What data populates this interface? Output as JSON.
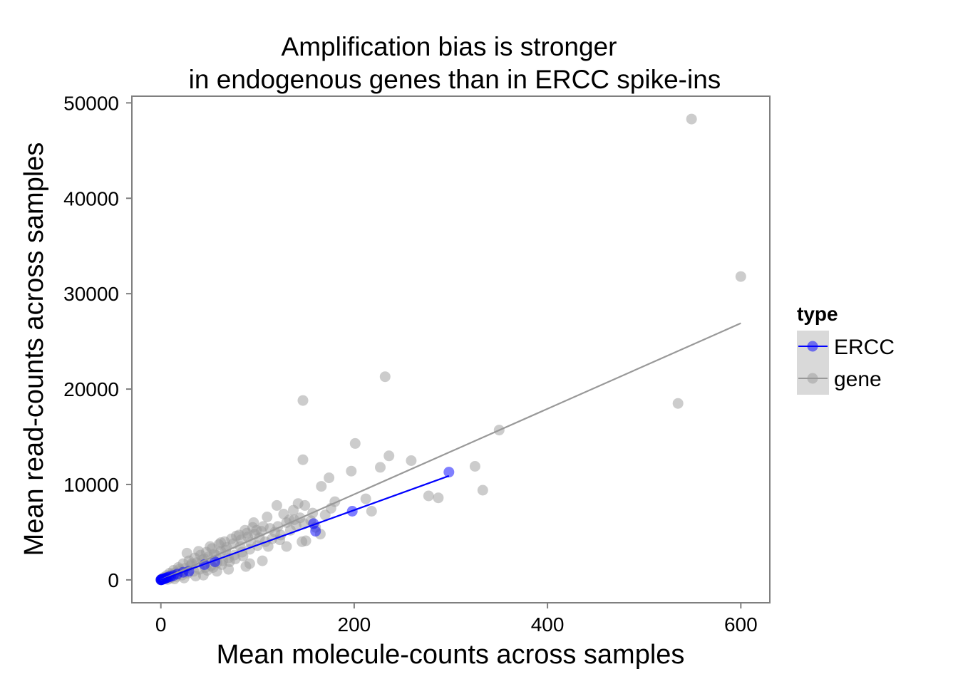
{
  "chart_data": {
    "type": "scatter",
    "title_lines": [
      "Amplification bias is stronger",
      "in endogenous genes than in ERCC spike-ins"
    ],
    "xlabel": "Mean molecule-counts across samples",
    "ylabel": "Mean read-counts across samples",
    "xlim": [
      -30,
      630
    ],
    "ylim": [
      -2400,
      50700
    ],
    "x_ticks": [
      0,
      200,
      400,
      600
    ],
    "y_ticks": [
      0,
      10000,
      20000,
      30000,
      40000,
      50000
    ],
    "x_tick_labels": [
      "0",
      "200",
      "400",
      "600"
    ],
    "y_tick_labels": [
      "0",
      "10000",
      "20000",
      "30000",
      "40000",
      "50000"
    ],
    "grid": false,
    "legend": {
      "title": "type",
      "placement": "right",
      "entries": [
        {
          "label": "ERCC",
          "color": "#0000ff"
        },
        {
          "label": "gene",
          "color": "#999999"
        }
      ]
    },
    "series": [
      {
        "name": "gene",
        "color": "#999999",
        "point_opacity": 0.5,
        "fit_line": {
          "x": [
            0,
            600
          ],
          "y": [
            0,
            26900
          ]
        },
        "points": [
          [
            549,
            48300
          ],
          [
            600,
            31800
          ],
          [
            535,
            18500
          ],
          [
            350,
            15700
          ],
          [
            232,
            21300
          ],
          [
            147,
            18800
          ],
          [
            147,
            12600
          ],
          [
            201,
            14300
          ],
          [
            236,
            13000
          ],
          [
            259,
            12500
          ],
          [
            197,
            11400
          ],
          [
            227,
            11800
          ],
          [
            325,
            11900
          ],
          [
            333,
            9400
          ],
          [
            277,
            8800
          ],
          [
            287,
            8600
          ],
          [
            174,
            10700
          ],
          [
            166,
            9800
          ],
          [
            212,
            8500
          ],
          [
            218,
            7200
          ],
          [
            180,
            8200
          ],
          [
            176,
            7500
          ],
          [
            142,
            8000
          ],
          [
            137,
            7300
          ],
          [
            120,
            7800
          ],
          [
            127,
            6900
          ],
          [
            149,
            7800
          ],
          [
            157,
            7000
          ],
          [
            144,
            6500
          ],
          [
            133,
            6300
          ],
          [
            110,
            6600
          ],
          [
            96,
            6000
          ],
          [
            106,
            5600
          ],
          [
            99,
            5200
          ],
          [
            89,
            4900
          ],
          [
            81,
            4700
          ],
          [
            73,
            4300
          ],
          [
            66,
            4000
          ],
          [
            60,
            3700
          ],
          [
            53,
            3300
          ],
          [
            47,
            2900
          ],
          [
            41,
            2600
          ],
          [
            35,
            2300
          ],
          [
            29,
            2000
          ],
          [
            23,
            1700
          ],
          [
            18,
            1300
          ],
          [
            13,
            1000
          ],
          [
            9,
            700
          ],
          [
            6,
            450
          ],
          [
            3,
            250
          ],
          [
            1,
            100
          ],
          [
            0,
            20
          ],
          [
            2,
            60
          ],
          [
            4,
            180
          ],
          [
            8,
            320
          ],
          [
            11,
            500
          ],
          [
            15,
            750
          ],
          [
            20,
            900
          ],
          [
            25,
            1200
          ],
          [
            31,
            1500
          ],
          [
            37,
            1800
          ],
          [
            43,
            2100
          ],
          [
            49,
            2400
          ],
          [
            55,
            2700
          ],
          [
            62,
            3000
          ],
          [
            68,
            3400
          ],
          [
            75,
            3800
          ],
          [
            83,
            4200
          ],
          [
            90,
            4500
          ],
          [
            97,
            4800
          ],
          [
            104,
            5100
          ],
          [
            113,
            5400
          ],
          [
            121,
            5600
          ],
          [
            130,
            6000
          ],
          [
            138,
            6300
          ],
          [
            115,
            4300
          ],
          [
            108,
            4000
          ],
          [
            100,
            3600
          ],
          [
            92,
            3200
          ],
          [
            84,
            2900
          ],
          [
            76,
            2600
          ],
          [
            70,
            2300
          ],
          [
            64,
            2000
          ],
          [
            58,
            1800
          ],
          [
            52,
            1500
          ],
          [
            46,
            1300
          ],
          [
            40,
            1100
          ],
          [
            34,
            900
          ],
          [
            28,
            700
          ],
          [
            22,
            500
          ],
          [
            16,
            350
          ],
          [
            10,
            200
          ],
          [
            27,
            2800
          ],
          [
            39,
            3000
          ],
          [
            51,
            3500
          ],
          [
            62,
            3900
          ],
          [
            78,
            4600
          ],
          [
            87,
            5200
          ],
          [
            95,
            5500
          ],
          [
            58,
            900
          ],
          [
            70,
            1100
          ],
          [
            88,
            1400
          ],
          [
            92,
            1700
          ],
          [
            105,
            2000
          ],
          [
            123,
            4200
          ],
          [
            130,
            3500
          ],
          [
            146,
            4000
          ],
          [
            150,
            4100
          ],
          [
            165,
            4800
          ],
          [
            160,
            5500
          ],
          [
            155,
            6200
          ],
          [
            170,
            6800
          ],
          [
            44,
            500
          ],
          [
            36,
            400
          ],
          [
            24,
            200
          ],
          [
            14,
            100
          ],
          [
            7,
            50
          ],
          [
            12,
            600
          ],
          [
            19,
            1100
          ],
          [
            32,
            1700
          ],
          [
            45,
            2200
          ],
          [
            57,
            2600
          ],
          [
            67,
            3100
          ],
          [
            82,
            3500
          ],
          [
            93,
            3900
          ],
          [
            102,
            4400
          ],
          [
            118,
            5000
          ],
          [
            124,
            4700
          ],
          [
            111,
            3500
          ],
          [
            134,
            5200
          ],
          [
            140,
            5700
          ],
          [
            148,
            5900
          ],
          [
            85,
            2500
          ],
          [
            77,
            2200
          ],
          [
            71,
            1900
          ],
          [
            63,
            1600
          ],
          [
            54,
            1300
          ],
          [
            48,
            1000
          ]
        ]
      },
      {
        "name": "ERCC",
        "color": "#0000ff",
        "point_opacity": 0.5,
        "fit_line": {
          "x": [
            0,
            298
          ],
          "y": [
            0,
            10900
          ]
        },
        "points": [
          [
            298,
            11300
          ],
          [
            198,
            7200
          ],
          [
            158,
            5900
          ],
          [
            160,
            5100
          ],
          [
            56,
            1900
          ],
          [
            45,
            1600
          ],
          [
            29,
            900
          ],
          [
            23,
            800
          ],
          [
            17,
            600
          ],
          [
            13,
            450
          ],
          [
            10,
            350
          ],
          [
            8,
            300
          ],
          [
            6,
            220
          ],
          [
            5,
            180
          ],
          [
            4,
            140
          ],
          [
            3,
            110
          ],
          [
            2,
            80
          ],
          [
            1.5,
            60
          ],
          [
            1,
            40
          ],
          [
            0.7,
            25
          ],
          [
            0.4,
            15
          ],
          [
            0.2,
            8
          ],
          [
            0.1,
            5
          ]
        ]
      }
    ]
  }
}
